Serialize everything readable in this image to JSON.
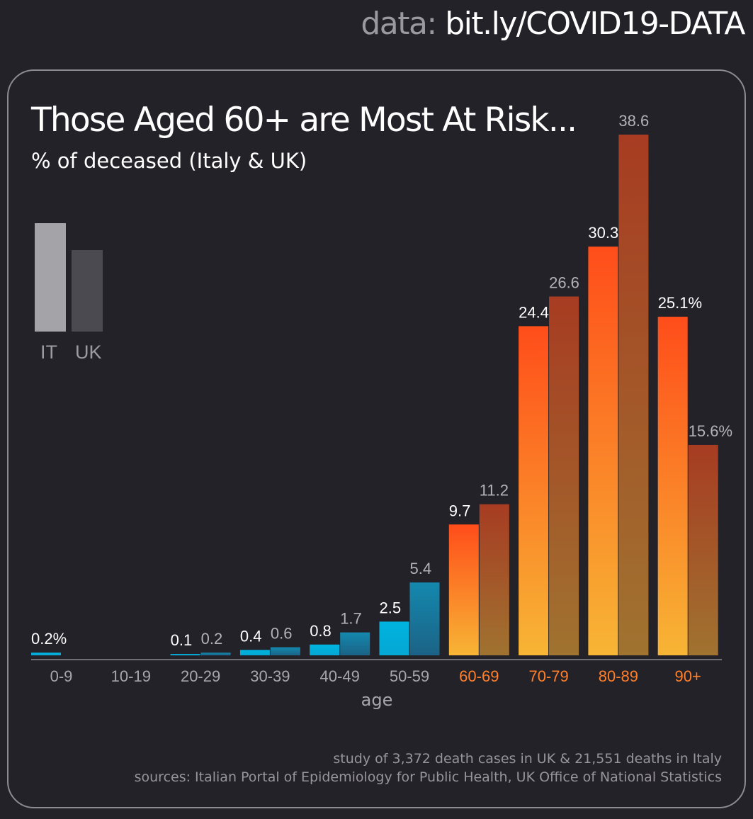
{
  "header": {
    "prefix": "data:",
    "url": "bit.ly/COVID19-DATA"
  },
  "legend": {
    "it_label": "IT",
    "uk_label": "UK"
  },
  "footer": {
    "note": "study of 3,372 death cases in UK & 21,551 deaths in Italy",
    "sources": "sources: Italian Portal of Epidemiology for Public Health, UK Office of National Statistics"
  },
  "colors": {
    "background": "#242229",
    "it_label_text": "#ffffff",
    "uk_label_text": "#b3b2b7",
    "young_category_text": "#a7a6ab",
    "old_category_text": "#ff7f2a",
    "young_it_gradient": [
      "#00b4e0",
      "#05a7d3"
    ],
    "young_uk_gradient": [
      "#1488ae",
      "#1b6386"
    ],
    "old_it_gradient": [
      "#ff4d1a",
      "#f7b535"
    ],
    "old_uk_gradient": [
      "#a73c22",
      "#a07330"
    ]
  },
  "chart_data": {
    "type": "bar",
    "title": "Those Aged 60+ are Most At Risk...",
    "subtitle": "% of deceased (Italy & UK)",
    "xlabel": "age",
    "ylabel": "",
    "ylim": [
      0,
      38.6
    ],
    "grid": false,
    "legend_position": "top-left",
    "categories": [
      "0-9",
      "10-19",
      "20-29",
      "30-39",
      "40-49",
      "50-59",
      "60-69",
      "70-79",
      "80-89",
      "90+"
    ],
    "highlighted_categories": [
      "60-69",
      "70-79",
      "80-89",
      "90+"
    ],
    "series": [
      {
        "name": "IT",
        "values": [
          0.2,
          0,
          0.1,
          0.4,
          0.8,
          2.5,
          9.7,
          24.4,
          30.3,
          25.1
        ],
        "labels": [
          "0.2%",
          "",
          "0.1",
          "0.4",
          "0.8",
          "2.5",
          "9.7",
          "24.4",
          "30.3",
          "25.1%"
        ]
      },
      {
        "name": "UK",
        "values": [
          0,
          0,
          0.2,
          0.6,
          1.7,
          5.4,
          11.2,
          26.6,
          38.6,
          15.6
        ],
        "labels": [
          "",
          "",
          "0.2",
          "0.6",
          "1.7",
          "5.4",
          "11.2",
          "26.6",
          "38.6",
          "15.6%"
        ]
      }
    ]
  }
}
